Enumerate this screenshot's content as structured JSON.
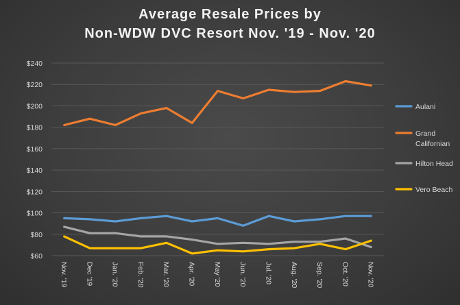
{
  "title_lines": [
    "Average Resale Prices by",
    "Non-WDW  DVC Resort Nov. '19 - Nov. '20"
  ],
  "colors": {
    "Aulani": "#5b9bd5",
    "Grand Californian": "#ed7d31",
    "Hilton Head": "#a5a5a5",
    "Vero Beach": "#ffc000",
    "grid": "#595959",
    "text": "#d9d9d9"
  },
  "chart_data": {
    "type": "line",
    "title": "Average Resale Prices by Non-WDW  DVC Resort Nov. '19 - Nov. '20",
    "xlabel": "",
    "ylabel": "",
    "categories": [
      "Nov. '19",
      "Dec '19",
      "Jan. '20",
      "Feb. '20",
      "Mar. '20",
      "Apr. '20",
      "May '20",
      "Jun. '20",
      "Jul. '20",
      "Aug. '20",
      "Sep. '20",
      "Oct. '20",
      "Nov. '20"
    ],
    "ylim": [
      60,
      240
    ],
    "yticks": [
      60,
      80,
      100,
      120,
      140,
      160,
      180,
      200,
      220,
      240
    ],
    "ytick_labels": [
      "$60",
      "$80",
      "$100",
      "$120",
      "$140",
      "$160",
      "$180",
      "$200",
      "$220",
      "$240"
    ],
    "grid": true,
    "legend_position": "right",
    "series": [
      {
        "name": "Aulani",
        "values": [
          95,
          94,
          92,
          95,
          97,
          92,
          95,
          88,
          97,
          92,
          94,
          97,
          97
        ]
      },
      {
        "name": "Grand Californian",
        "values": [
          182,
          188,
          182,
          193,
          198,
          184,
          214,
          207,
          215,
          213,
          214,
          223,
          219
        ]
      },
      {
        "name": "Hilton Head",
        "values": [
          87,
          81,
          81,
          78,
          78,
          75,
          71,
          72,
          71,
          73,
          73,
          76,
          68
        ]
      },
      {
        "name": "Vero Beach",
        "values": [
          78,
          67,
          67,
          67,
          72,
          62,
          65,
          64,
          66,
          67,
          71,
          66,
          74
        ]
      }
    ]
  }
}
